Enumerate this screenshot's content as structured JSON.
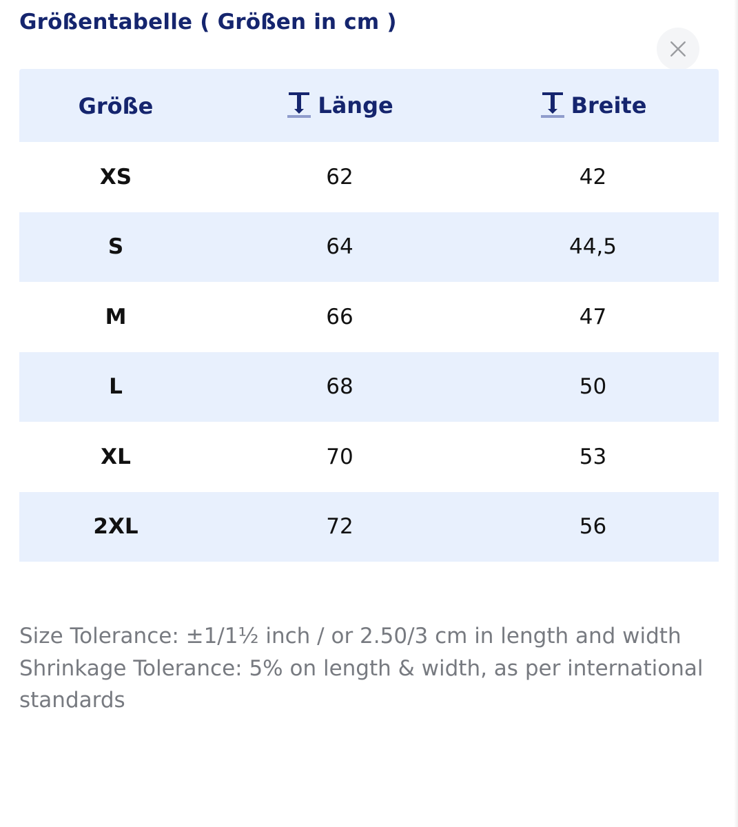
{
  "modal": {
    "title": "Größentabelle ( Größen in cm )",
    "close_icon": "close-icon"
  },
  "table": {
    "headers": [
      {
        "label": "Größe",
        "icon": null
      },
      {
        "label": "Länge",
        "icon": "vertical-measure-icon"
      },
      {
        "label": "Breite",
        "icon": "vertical-measure-icon"
      }
    ],
    "rows": [
      {
        "size": "XS",
        "length": "62",
        "width": "42"
      },
      {
        "size": "S",
        "length": "64",
        "width": "44,5"
      },
      {
        "size": "M",
        "length": "66",
        "width": "47"
      },
      {
        "size": "L",
        "length": "68",
        "width": "50"
      },
      {
        "size": "XL",
        "length": "70",
        "width": "53"
      },
      {
        "size": "2XL",
        "length": "72",
        "width": "56"
      }
    ]
  },
  "notes": {
    "size_tolerance": "Size Tolerance: ±1/1½ inch / or 2.50/3 cm in length and width",
    "shrinkage_tolerance": "Shrinkage Tolerance: 5% on length & width, as per international standards"
  },
  "colors": {
    "accent": "#15256e",
    "row_shade": "#e8f0fd",
    "note_text": "#777a80"
  }
}
